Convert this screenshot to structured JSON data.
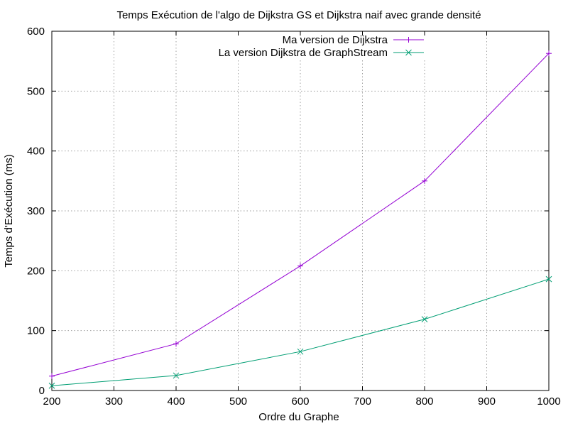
{
  "chart_data": {
    "type": "line",
    "title": "Temps Exécution de l'algo de Dijkstra GS et Dijkstra naif avec grande densité",
    "xlabel": "Ordre du Graphe",
    "ylabel": "Temps d'Exécution (ms)",
    "xlim": [
      200,
      1000
    ],
    "ylim": [
      0,
      600
    ],
    "xticks": [
      "200",
      "300",
      "400",
      "500",
      "600",
      "700",
      "800",
      "900",
      "1000"
    ],
    "yticks": [
      "0",
      "100",
      "200",
      "300",
      "400",
      "500",
      "600"
    ],
    "grid": true,
    "legend_position": "top-right",
    "x": [
      200,
      400,
      600,
      800,
      1000
    ],
    "series": [
      {
        "name": "Ma version de Dijkstra",
        "marker": "+",
        "color": "#9400d3",
        "values": [
          24,
          78,
          208,
          350,
          563
        ]
      },
      {
        "name": "La version Dijkstra de GraphStream",
        "marker": "x",
        "color": "#009e73",
        "values": [
          8,
          25,
          65,
          119,
          186
        ]
      }
    ]
  }
}
